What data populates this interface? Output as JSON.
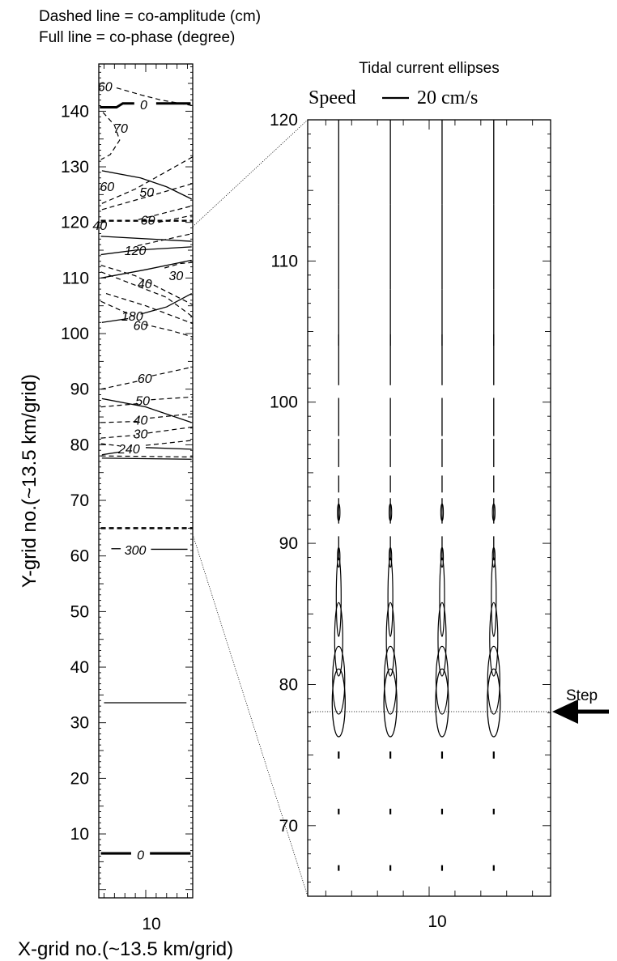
{
  "legend": {
    "dashed": "Dashed line = co-amplitude (cm)",
    "full": "Full line = co-phase (degree)"
  },
  "ellipse_panel": {
    "title": "Tidal current ellipses",
    "speed_label": "Speed",
    "speed_value": "20 cm/s",
    "step_label": "Step"
  },
  "chart_data": [
    {
      "type": "contour",
      "title": "",
      "xlabel": "X-grid no.(~13.5 km/grid)",
      "ylabel": "Y-grid no.(~13.5 km/grid)",
      "xlim": [
        5.5,
        14.5
      ],
      "ylim": [
        -1.5,
        148.5
      ],
      "xticks": [
        10
      ],
      "yticks": [
        10,
        20,
        30,
        40,
        50,
        60,
        70,
        80,
        90,
        100,
        110,
        120,
        130,
        140
      ],
      "dashed_labels": [
        {
          "text": "60",
          "x": 6.1,
          "y": 144.5
        },
        {
          "text": "70",
          "x": 7.6,
          "y": 137
        },
        {
          "text": "60",
          "x": 6.3,
          "y": 126.5
        },
        {
          "text": "50",
          "x": 10.1,
          "y": 125.5
        },
        {
          "text": "60",
          "x": 10.2,
          "y": 120.5
        },
        {
          "text": "40",
          "x": 5.6,
          "y": 119.5
        },
        {
          "text": "30",
          "x": 12.9,
          "y": 110.5
        },
        {
          "text": "40",
          "x": 9.9,
          "y": 109
        },
        {
          "text": "60",
          "x": 9.5,
          "y": 101.5
        },
        {
          "text": "60",
          "x": 9.9,
          "y": 92
        },
        {
          "text": "50",
          "x": 9.7,
          "y": 88
        },
        {
          "text": "40",
          "x": 9.5,
          "y": 84.5
        },
        {
          "text": "30",
          "x": 9.5,
          "y": 82
        }
      ],
      "solid_labels": [
        {
          "text": "0",
          "x": 9.8,
          "y": 141.2
        },
        {
          "text": "120",
          "x": 9.0,
          "y": 115
        },
        {
          "text": "180",
          "x": 8.7,
          "y": 103.2
        },
        {
          "text": "240",
          "x": 8.4,
          "y": 79.3
        },
        {
          "text": "300",
          "x": 9.0,
          "y": 61.1
        },
        {
          "text": "0",
          "x": 9.5,
          "y": 6.3
        }
      ],
      "zoom_window": {
        "y_min": 65,
        "y_max": 120
      }
    },
    {
      "type": "ellipses",
      "title": "Tidal current ellipses",
      "xlim": [
        5.3,
        14.7
      ],
      "ylim": [
        65,
        120
      ],
      "xticks": [
        10
      ],
      "yticks": [
        70,
        80,
        90,
        100,
        110,
        120
      ],
      "columns_x": [
        6.5,
        8.5,
        10.5,
        12.5
      ],
      "step_y": 78,
      "ellipse_rows_y": [
        67,
        71,
        75,
        78.7,
        80,
        82.5,
        84.5,
        87,
        90,
        92.5,
        95,
        97.5,
        100,
        102.5,
        105,
        108,
        111,
        114,
        117.5
      ]
    }
  ]
}
